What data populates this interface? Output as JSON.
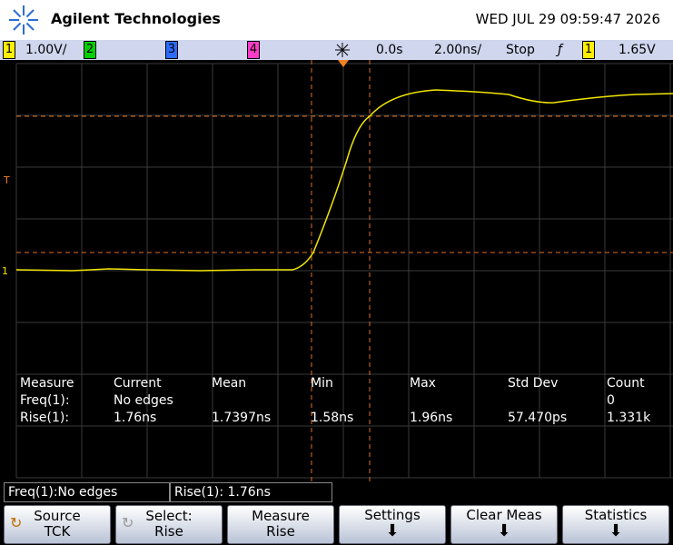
{
  "header": {
    "brand": "Agilent Technologies",
    "datetime": "WED JUL 29 09:59:47 2026"
  },
  "status_bar": {
    "ch1": "1",
    "ch1_scale": "1.00V/",
    "ch2": "2",
    "ch3": "3",
    "ch4": "4",
    "time_offset": "0.0s",
    "time_scale": "2.00ns/",
    "run_state": "Stop",
    "trigger_source": "1",
    "trigger_level": "1.65V"
  },
  "markers": {
    "trigger": "T",
    "ch1": "1"
  },
  "measurements": {
    "columns": [
      "Measure",
      "Current",
      "Mean",
      "Min",
      "Max",
      "Std Dev",
      "Count"
    ],
    "rows": [
      {
        "label": "Freq(1):",
        "current": "No edges",
        "count": "0"
      },
      {
        "label": "Rise(1):",
        "current": "1.76ns",
        "mean": "1.7397ns",
        "min": "1.58ns",
        "max": "1.96ns",
        "std_dev": "57.470ps",
        "count": "1.331k"
      }
    ]
  },
  "readouts": [
    "Freq(1):No edges",
    "Rise(1): 1.76ns"
  ],
  "softkeys": [
    {
      "label": "Source",
      "value": "TCK"
    },
    {
      "label": "Select:",
      "value": "Rise"
    },
    {
      "label": "Measure",
      "value": "Rise"
    },
    {
      "label": "Settings"
    },
    {
      "label": "Clear Meas"
    },
    {
      "label": "Statistics"
    }
  ]
}
